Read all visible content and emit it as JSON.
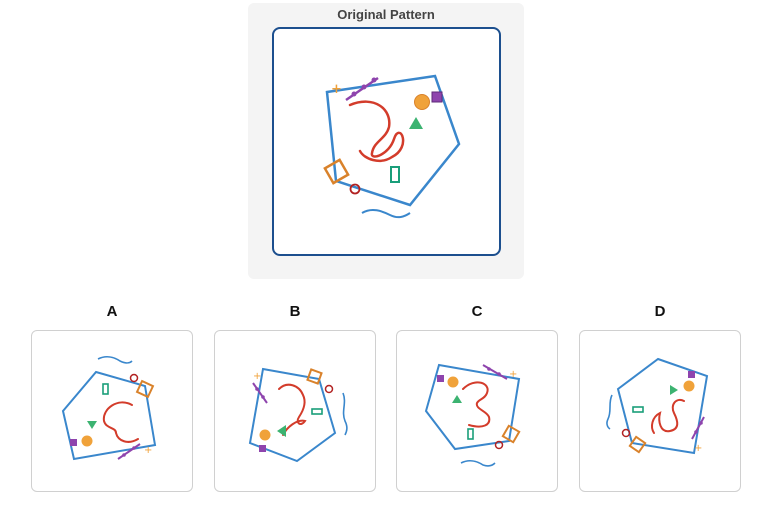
{
  "original": {
    "title": "Original Pattern"
  },
  "options": [
    {
      "label": "A"
    },
    {
      "label": "B"
    },
    {
      "label": "C"
    },
    {
      "label": "D"
    }
  ],
  "colors": {
    "pentagon": "#3a87cc",
    "curve": "#d33c2b",
    "wave": "#3a87cc",
    "orange_circle": "#f0a23a",
    "purple_square": "#8e44ad",
    "green_triangle": "#3cb371",
    "green_rect": "#1a9e7a",
    "orange_diamond": "#d9822b",
    "red_ring": "#b22222",
    "frame": "#1c4f8e"
  }
}
